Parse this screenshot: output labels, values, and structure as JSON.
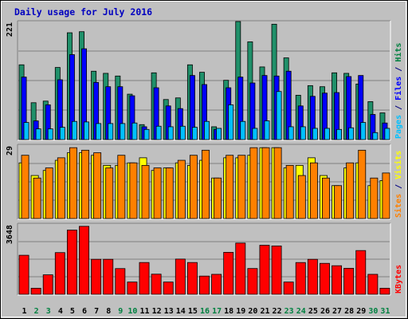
{
  "chart_data": {
    "type": "bar",
    "title": "Daily usage for July 2016",
    "categories": [
      "1",
      "2",
      "3",
      "4",
      "5",
      "6",
      "7",
      "8",
      "9",
      "10",
      "11",
      "12",
      "13",
      "14",
      "15",
      "16",
      "17",
      "18",
      "19",
      "20",
      "21",
      "22",
      "23",
      "24",
      "25",
      "26",
      "27",
      "28",
      "29",
      "30",
      "31"
    ],
    "weekend_days": [
      2,
      3,
      9,
      10,
      16,
      17,
      23,
      24,
      30,
      31
    ],
    "panels": [
      {
        "id": "hits",
        "max_label": "221",
        "ylim": [
          0,
          221
        ],
        "right_label": [
          {
            "text": "Pages",
            "color": "#00c0ff"
          },
          {
            "text": " / ",
            "color": "#000080"
          },
          {
            "text": "Files",
            "color": "#0000ff"
          },
          {
            "text": " / ",
            "color": "#000080"
          },
          {
            "text": "Hits",
            "color": "#008040"
          }
        ],
        "series": [
          {
            "name": "Hits",
            "color": "#20906a",
            "values": [
              140,
              69,
              72,
              135,
              200,
              202,
              128,
              124,
              119,
              85,
              28,
              125,
              75,
              78,
              140,
              126,
              24,
              111,
              221,
              183,
              136,
              216,
              153,
              83,
              101,
              99,
              125,
              124,
              104,
              71,
              50
            ]
          },
          {
            "name": "Files",
            "color": "#0000ff",
            "values": [
              117,
              35,
              65,
              112,
              159,
              170,
              107,
              99,
              99,
              82,
              24,
              97,
              63,
              58,
              120,
              103,
              19,
              97,
              117,
              106,
              120,
              119,
              128,
              63,
              81,
              87,
              88,
              118,
              120,
              47,
              31
            ]
          },
          {
            "name": "Pages",
            "color": "#00c0ff",
            "values": [
              32,
              20,
              20,
              23,
              34,
              33,
              30,
              30,
              30,
              31,
              19,
              25,
              24,
              25,
              23,
              34,
              21,
              65,
              34,
              21,
              35,
              90,
              24,
              24,
              21,
              21,
              19,
              22,
              32,
              13,
              21
            ]
          }
        ]
      },
      {
        "id": "visits",
        "max_label": "29",
        "ylim": [
          0,
          29
        ],
        "right_label": [
          {
            "text": "Sites",
            "color": "#ff8000"
          },
          {
            "text": " / ",
            "color": "#000080"
          },
          {
            "text": "Visits",
            "color": "#ffff00"
          }
        ],
        "series": [
          {
            "name": "Visits",
            "color": "#ffff00",
            "values": [
              22,
              17,
              19,
              23,
              26,
              26,
              25,
              21,
              21,
              22,
              24,
              19,
              20,
              22,
              21,
              23,
              16,
              24,
              24,
              25,
              28,
              28,
              20,
              21,
              24,
              17,
              13,
              20,
              22,
              13,
              15
            ]
          },
          {
            "name": "Sites",
            "color": "#ff8000",
            "values": [
              25,
              16,
              20,
              24,
              28,
              27,
              26,
              20,
              25,
              22,
              21,
              20,
              20,
              23,
              25,
              27,
              16,
              25,
              25,
              28,
              28,
              28,
              21,
              17,
              22,
              16,
              13,
              22,
              27,
              16,
              18
            ]
          }
        ]
      },
      {
        "id": "kbytes",
        "max_label": "3648",
        "ylim": [
          0,
          3648
        ],
        "right_label": [
          {
            "text": "KBytes",
            "color": "#ff0000"
          }
        ],
        "series": [
          {
            "name": "KBytes",
            "color": "#ff0000",
            "values": [
              2028,
              315,
              1012,
              2167,
              3338,
              3532,
              1817,
              1817,
              1336,
              637,
              1652,
              1046,
              637,
              1830,
              1652,
              946,
              1037,
              2181,
              2662,
              1340,
              2548,
              2512,
              637,
              1650,
              1817,
              1608,
              1485,
              1352,
              2273,
              1037,
              315
            ]
          }
        ]
      }
    ]
  }
}
